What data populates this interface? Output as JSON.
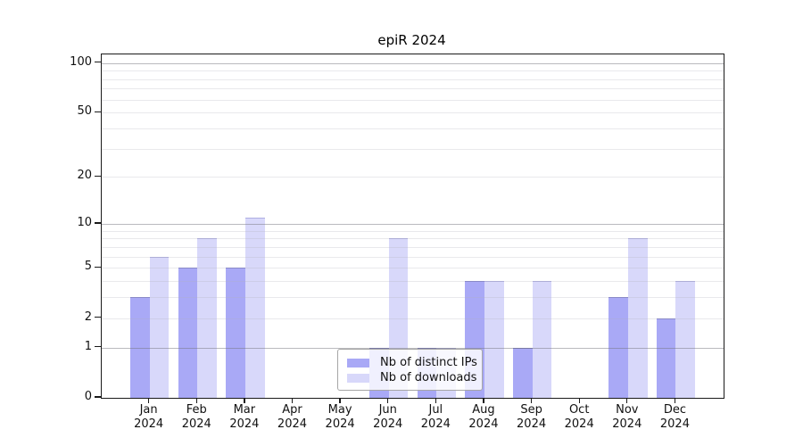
{
  "title": "epiR 2024",
  "colors": {
    "distinct_ips_bar": "#a9a9f6",
    "downloads_bar": "#d8d8fa",
    "axis": "#1a1a1a",
    "major_gridline": "#c6c6ca",
    "minor_gridline": "#e8e8ee",
    "legend_border": "#a6a6a6"
  },
  "chart_data": {
    "type": "bar",
    "title": "epiR 2024",
    "categories": [
      {
        "month": "Jan",
        "year": "2024"
      },
      {
        "month": "Feb",
        "year": "2024"
      },
      {
        "month": "Mar",
        "year": "2024"
      },
      {
        "month": "Apr",
        "year": "2024"
      },
      {
        "month": "May",
        "year": "2024"
      },
      {
        "month": "Jun",
        "year": "2024"
      },
      {
        "month": "Jul",
        "year": "2024"
      },
      {
        "month": "Aug",
        "year": "2024"
      },
      {
        "month": "Sep",
        "year": "2024"
      },
      {
        "month": "Oct",
        "year": "2024"
      },
      {
        "month": "Nov",
        "year": "2024"
      },
      {
        "month": "Dec",
        "year": "2024"
      }
    ],
    "series": [
      {
        "name": "Nb of distinct IPs",
        "color": "#a9a9f6",
        "edge": "rgba(88,88,170,0.55)",
        "values": [
          3,
          5,
          5,
          0,
          0,
          1,
          1,
          4,
          1,
          0,
          3,
          2
        ]
      },
      {
        "name": "Nb of downloads",
        "color": "#d8d8fa",
        "edge": "rgba(140,140,205,0.55)",
        "values": [
          6,
          8,
          11,
          0,
          0,
          8,
          1,
          4,
          4,
          0,
          8,
          4
        ]
      }
    ],
    "xlabel": "",
    "ylabel": "",
    "yscale": "log1p",
    "ylim": [
      0,
      113
    ],
    "yticks": [
      0,
      1,
      2,
      5,
      10,
      20,
      50,
      100
    ],
    "minor_gridlines": [
      2,
      3,
      4,
      5,
      6,
      7,
      8,
      9,
      20,
      30,
      40,
      50,
      60,
      70,
      80,
      90
    ],
    "major_gridlines": [
      1,
      10,
      100
    ],
    "grid": "horizontal",
    "legend_position": "bottom-center"
  }
}
